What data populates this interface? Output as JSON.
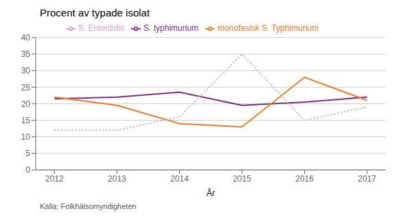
{
  "chart_data": {
    "type": "line",
    "title": "Procent av typade isolat",
    "xlabel": "År",
    "annotations": [
      "Källa: Folkhälsomyndigheten"
    ],
    "x": [
      2012,
      2013,
      2014,
      2015,
      2016,
      2017
    ],
    "series": [
      {
        "name": "S. typhimurium",
        "color": "#7B2D8B",
        "line_style": "solid",
        "values": [
          21.5,
          22.0,
          23.5,
          19.5,
          20.5,
          22.0
        ]
      },
      {
        "name": "monofasisk S. Typhimurium",
        "color": "#F07820",
        "line_style": "solid",
        "values": [
          22.0,
          19.5,
          14.0,
          13.0,
          28.0,
          21.0
        ]
      },
      {
        "name": "S. Enteritidis",
        "color": "#D9A0C8",
        "line_style": "dotted",
        "values": [
          12.0,
          12.0,
          16.0,
          35.0,
          15.0,
          19.0
        ]
      }
    ],
    "xlim": [
      2011.7,
      2017.3
    ],
    "xticks": [
      2012,
      2013,
      2014,
      2015,
      2016,
      2017
    ],
    "ylim": [
      0,
      40
    ],
    "yticks": [
      0,
      5,
      10,
      15,
      20,
      25,
      30,
      35,
      40
    ],
    "grid": true,
    "legend": "top"
  }
}
